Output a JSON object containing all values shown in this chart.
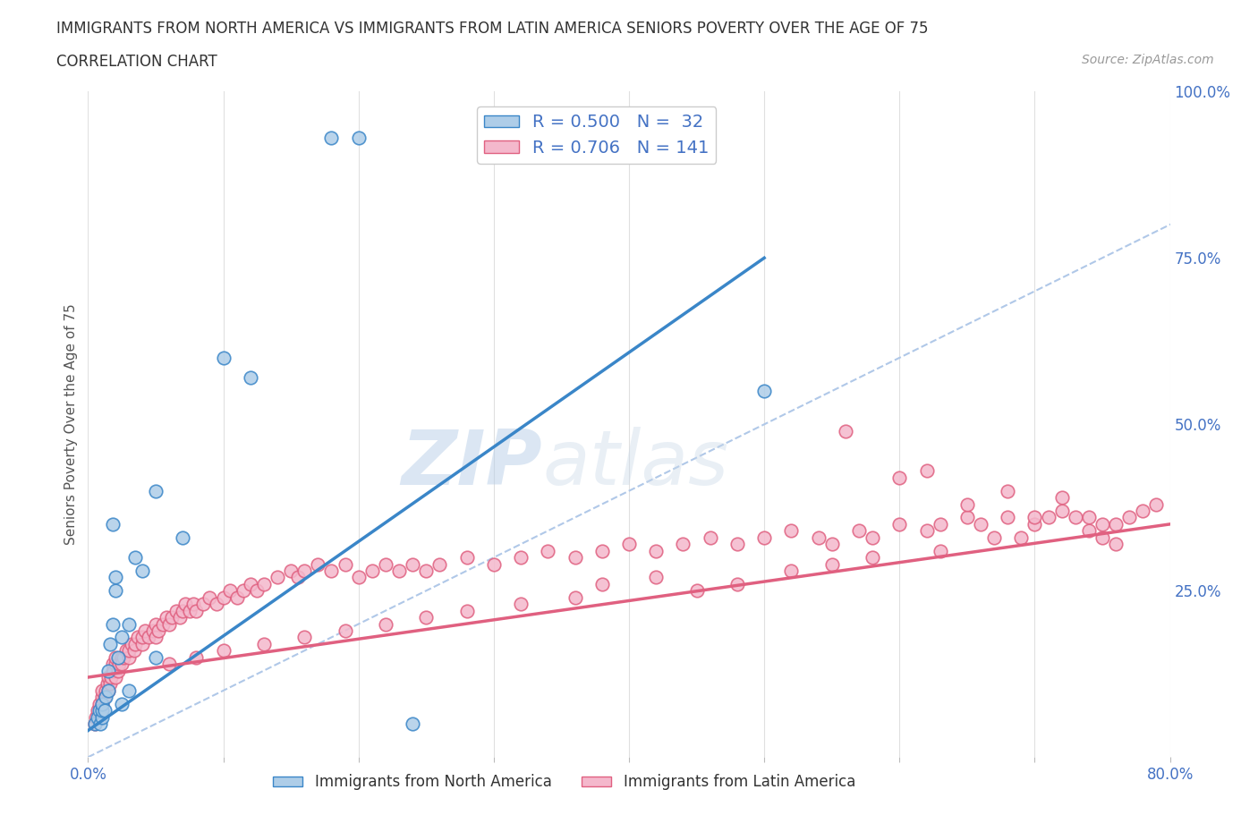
{
  "title_line1": "IMMIGRANTS FROM NORTH AMERICA VS IMMIGRANTS FROM LATIN AMERICA SENIORS POVERTY OVER THE AGE OF 75",
  "title_line2": "CORRELATION CHART",
  "source_text": "Source: ZipAtlas.com",
  "ylabel": "Seniors Poverty Over the Age of 75",
  "xlim": [
    0,
    0.8
  ],
  "ylim": [
    0,
    1.0
  ],
  "ytick_right": [
    0.0,
    0.25,
    0.5,
    0.75,
    1.0
  ],
  "ytick_right_labels": [
    "",
    "25.0%",
    "50.0%",
    "75.0%",
    "100.0%"
  ],
  "na_scatter_color": "#aecde8",
  "la_scatter_color": "#f4b8cc",
  "na_line_color": "#3a86c8",
  "la_line_color": "#e06080",
  "ref_line_color": "#b0c8e8",
  "watermark_color": "#ccdff0",
  "R_north": 0.5,
  "N_north": 32,
  "R_latin": 0.706,
  "N_latin": 141,
  "na_x": [
    0.005,
    0.007,
    0.008,
    0.009,
    0.01,
    0.01,
    0.01,
    0.012,
    0.013,
    0.015,
    0.015,
    0.016,
    0.018,
    0.018,
    0.02,
    0.02,
    0.022,
    0.025,
    0.025,
    0.03,
    0.03,
    0.035,
    0.04,
    0.05,
    0.05,
    0.07,
    0.1,
    0.12,
    0.18,
    0.2,
    0.24,
    0.5
  ],
  "na_y": [
    0.05,
    0.06,
    0.07,
    0.05,
    0.06,
    0.07,
    0.08,
    0.07,
    0.09,
    0.1,
    0.13,
    0.17,
    0.2,
    0.35,
    0.25,
    0.27,
    0.15,
    0.18,
    0.08,
    0.1,
    0.2,
    0.3,
    0.28,
    0.15,
    0.4,
    0.33,
    0.6,
    0.57,
    0.93,
    0.93,
    0.05,
    0.55
  ],
  "na_line_x": [
    0.0,
    0.5
  ],
  "na_line_y": [
    0.04,
    0.75
  ],
  "la_line_x": [
    0.0,
    0.8
  ],
  "la_line_y": [
    0.12,
    0.35
  ],
  "la_x": [
    0.005,
    0.006,
    0.007,
    0.008,
    0.008,
    0.009,
    0.01,
    0.01,
    0.01,
    0.012,
    0.013,
    0.014,
    0.015,
    0.015,
    0.016,
    0.017,
    0.018,
    0.018,
    0.019,
    0.02,
    0.02,
    0.02,
    0.022,
    0.023,
    0.025,
    0.025,
    0.026,
    0.028,
    0.03,
    0.03,
    0.032,
    0.034,
    0.035,
    0.037,
    0.04,
    0.04,
    0.042,
    0.045,
    0.048,
    0.05,
    0.05,
    0.052,
    0.055,
    0.058,
    0.06,
    0.062,
    0.065,
    0.068,
    0.07,
    0.072,
    0.075,
    0.078,
    0.08,
    0.085,
    0.09,
    0.095,
    0.1,
    0.105,
    0.11,
    0.115,
    0.12,
    0.125,
    0.13,
    0.14,
    0.15,
    0.155,
    0.16,
    0.17,
    0.18,
    0.19,
    0.2,
    0.21,
    0.22,
    0.23,
    0.24,
    0.25,
    0.26,
    0.28,
    0.3,
    0.32,
    0.34,
    0.36,
    0.38,
    0.4,
    0.42,
    0.44,
    0.46,
    0.48,
    0.5,
    0.52,
    0.54,
    0.55,
    0.57,
    0.58,
    0.6,
    0.62,
    0.63,
    0.65,
    0.66,
    0.68,
    0.69,
    0.7,
    0.71,
    0.72,
    0.73,
    0.74,
    0.75,
    0.76,
    0.77,
    0.78,
    0.79,
    0.56,
    0.6,
    0.62,
    0.65,
    0.68,
    0.7,
    0.72,
    0.74,
    0.75,
    0.76,
    0.67,
    0.63,
    0.58,
    0.55,
    0.52,
    0.48,
    0.45,
    0.42,
    0.38,
    0.36,
    0.32,
    0.28,
    0.25,
    0.22,
    0.19,
    0.16,
    0.13,
    0.1,
    0.08,
    0.06
  ],
  "la_y": [
    0.05,
    0.06,
    0.07,
    0.06,
    0.08,
    0.07,
    0.08,
    0.09,
    0.1,
    0.09,
    0.1,
    0.11,
    0.1,
    0.12,
    0.11,
    0.12,
    0.13,
    0.14,
    0.13,
    0.14,
    0.15,
    0.12,
    0.13,
    0.14,
    0.15,
    0.14,
    0.15,
    0.16,
    0.15,
    0.16,
    0.17,
    0.16,
    0.17,
    0.18,
    0.17,
    0.18,
    0.19,
    0.18,
    0.19,
    0.18,
    0.2,
    0.19,
    0.2,
    0.21,
    0.2,
    0.21,
    0.22,
    0.21,
    0.22,
    0.23,
    0.22,
    0.23,
    0.22,
    0.23,
    0.24,
    0.23,
    0.24,
    0.25,
    0.24,
    0.25,
    0.26,
    0.25,
    0.26,
    0.27,
    0.28,
    0.27,
    0.28,
    0.29,
    0.28,
    0.29,
    0.27,
    0.28,
    0.29,
    0.28,
    0.29,
    0.28,
    0.29,
    0.3,
    0.29,
    0.3,
    0.31,
    0.3,
    0.31,
    0.32,
    0.31,
    0.32,
    0.33,
    0.32,
    0.33,
    0.34,
    0.33,
    0.32,
    0.34,
    0.33,
    0.35,
    0.34,
    0.35,
    0.36,
    0.35,
    0.36,
    0.33,
    0.35,
    0.36,
    0.37,
    0.36,
    0.34,
    0.33,
    0.35,
    0.36,
    0.37,
    0.38,
    0.49,
    0.42,
    0.43,
    0.38,
    0.4,
    0.36,
    0.39,
    0.36,
    0.35,
    0.32,
    0.33,
    0.31,
    0.3,
    0.29,
    0.28,
    0.26,
    0.25,
    0.27,
    0.26,
    0.24,
    0.23,
    0.22,
    0.21,
    0.2,
    0.19,
    0.18,
    0.17,
    0.16,
    0.15,
    0.14
  ]
}
